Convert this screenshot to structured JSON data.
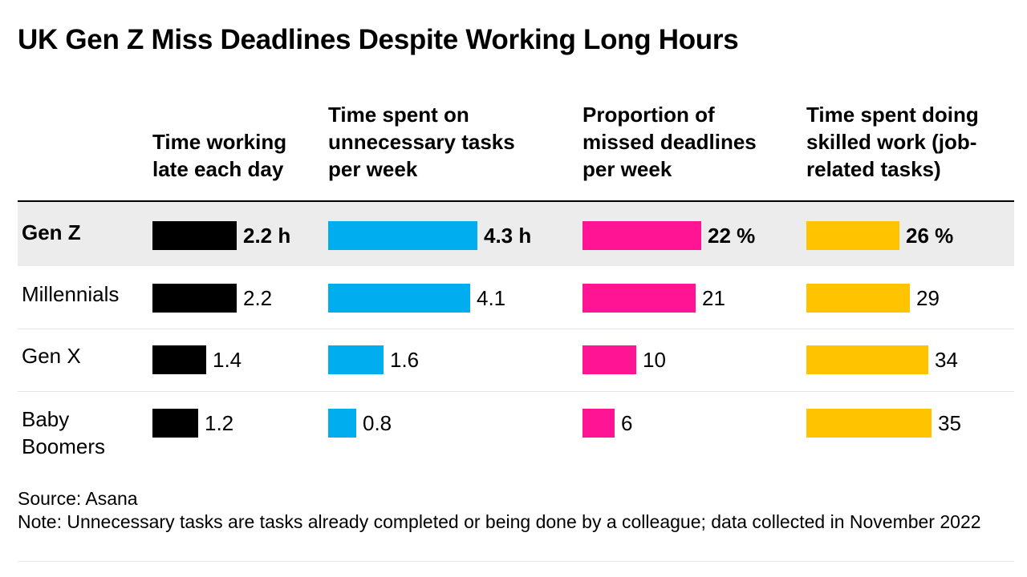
{
  "title": "UK Gen Z Miss Deadlines Despite Working Long Hours",
  "source": "Source: Asana",
  "note": "Note: Unnecessary tasks are tasks already completed or being done by a colleague; data collected in November 2022",
  "chart_data": {
    "type": "bar",
    "orientation": "horizontal",
    "title": "UK Gen Z Miss Deadlines Despite Working Long Hours",
    "categories": [
      "Gen Z",
      "Millennials",
      "Gen X",
      "Baby Boomers"
    ],
    "highlighted_category": "Gen Z",
    "series": [
      {
        "name": "Time working late each day",
        "header_lines": [
          "Time working",
          "late each day"
        ],
        "color": "#000000",
        "values": [
          2.2,
          2.2,
          1.4,
          1.2
        ],
        "labels": [
          "2.2 h",
          "2.2",
          "1.4",
          "1.2"
        ]
      },
      {
        "name": "Time spent on unnecessary tasks per week",
        "header_lines": [
          "Time spent on",
          "unnecessary tasks",
          "per week"
        ],
        "color": "#00aeef",
        "values": [
          4.3,
          4.1,
          1.6,
          0.8
        ],
        "labels": [
          "4.3 h",
          "4.1",
          "1.6",
          "0.8"
        ]
      },
      {
        "name": "Proportion of missed deadlines per week",
        "header_lines": [
          "Proportion of",
          "missed deadlines",
          "per week"
        ],
        "color": "#ff1493",
        "values": [
          22,
          21,
          10,
          6
        ],
        "labels": [
          "22 %",
          "21",
          "10",
          "6"
        ]
      },
      {
        "name": "Time spent doing skilled work (job-related tasks)",
        "header_lines": [
          "Time spent doing",
          "skilled work (job-",
          "related tasks)"
        ],
        "color": "#ffc300",
        "values": [
          26,
          29,
          34,
          35
        ],
        "labels": [
          "26 %",
          "29",
          "34",
          "35"
        ]
      }
    ]
  }
}
